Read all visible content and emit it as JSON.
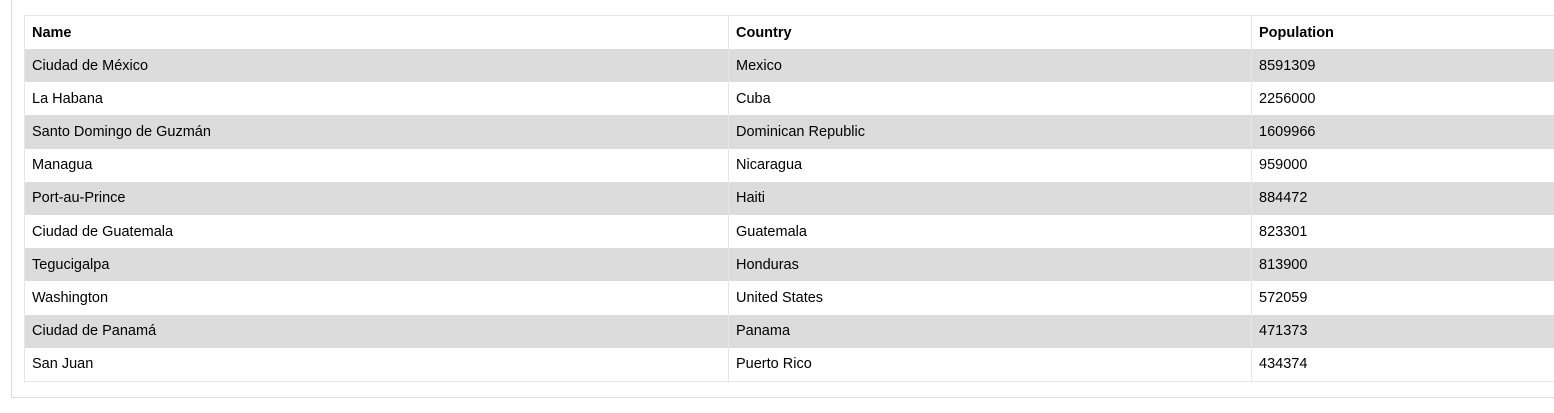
{
  "table": {
    "headers": [
      "Name",
      "Country",
      "Population"
    ],
    "rows": [
      [
        "Ciudad de México",
        "Mexico",
        "8591309"
      ],
      [
        "La Habana",
        "Cuba",
        "2256000"
      ],
      [
        "Santo Domingo de Guzmán",
        "Dominican Republic",
        "1609966"
      ],
      [
        "Managua",
        "Nicaragua",
        "959000"
      ],
      [
        "Port-au-Prince",
        "Haiti",
        "884472"
      ],
      [
        "Ciudad de Guatemala",
        "Guatemala",
        "823301"
      ],
      [
        "Tegucigalpa",
        "Honduras",
        "813900"
      ],
      [
        "Washington",
        "United States",
        "572059"
      ],
      [
        "Ciudad de Panamá",
        "Panama",
        "471373"
      ],
      [
        "San Juan",
        "Puerto Rico",
        "434374"
      ]
    ]
  },
  "colors": {
    "row_alt": "#dcdcdc",
    "row_base": "#ffffff",
    "border": "#e6e6e6"
  }
}
